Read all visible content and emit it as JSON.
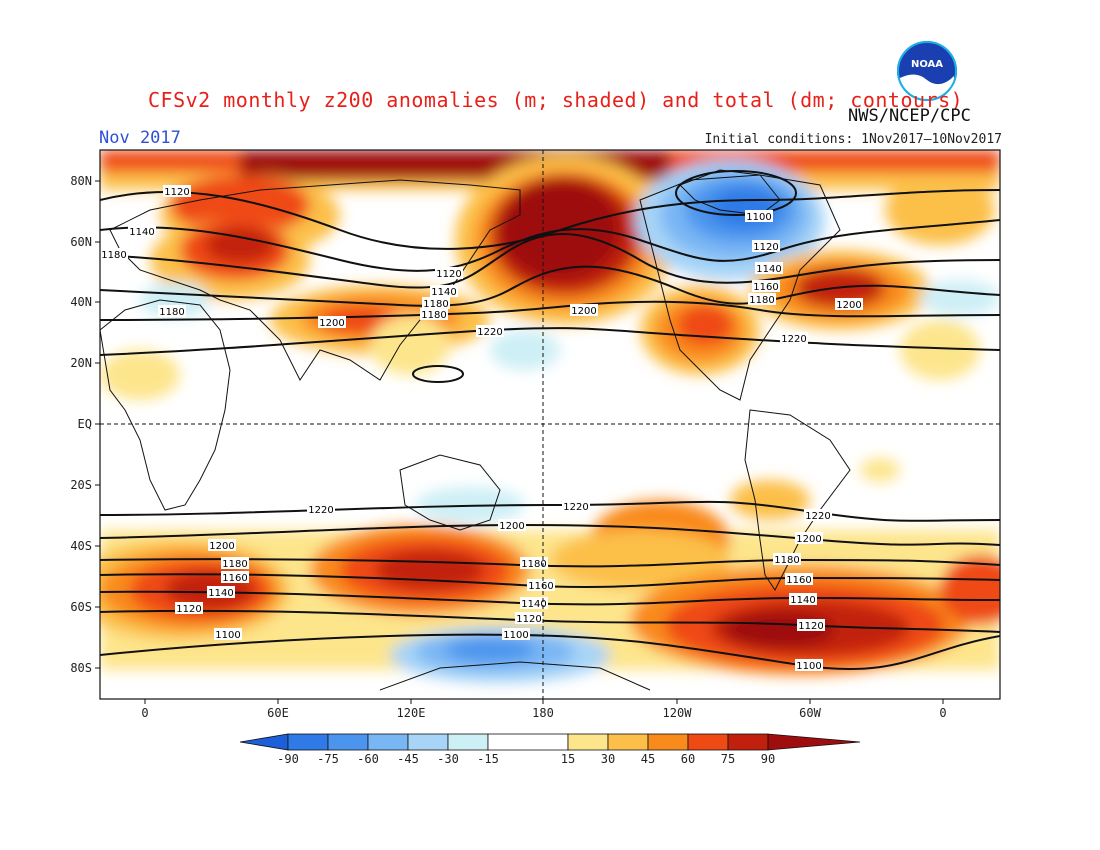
{
  "title": "CFSv2 monthly z200 anomalies (m; shaded) and total (dm; contours)",
  "agency": "NWS/NCEP/CPC",
  "month": "Nov 2017",
  "initial_conditions": "Initial conditions: 1Nov2017–10Nov2017",
  "logo_text": "NOAA",
  "y_ticks": [
    "80N",
    "60N",
    "40N",
    "20N",
    "EQ",
    "20S",
    "40S",
    "60S",
    "80S"
  ],
  "x_ticks": [
    "0",
    "60E",
    "120E",
    "180",
    "120W",
    "60W",
    "0"
  ],
  "colorbar": {
    "labels": [
      "-90",
      "-75",
      "-60",
      "-45",
      "-30",
      "-15",
      "15",
      "30",
      "45",
      "60",
      "75",
      "90"
    ],
    "colors": [
      "#1c5fd8",
      "#2f7ae6",
      "#4c95ee",
      "#79b6f4",
      "#a7d4f7",
      "#cdeff6",
      "#ffffff",
      "#fde58c",
      "#fcc04a",
      "#f98a1c",
      "#ef4a14",
      "#c2200f",
      "#9e0e0e"
    ]
  },
  "contour_labels": [
    "1100",
    "1120",
    "1140",
    "1160",
    "1180",
    "1200",
    "1220"
  ]
}
